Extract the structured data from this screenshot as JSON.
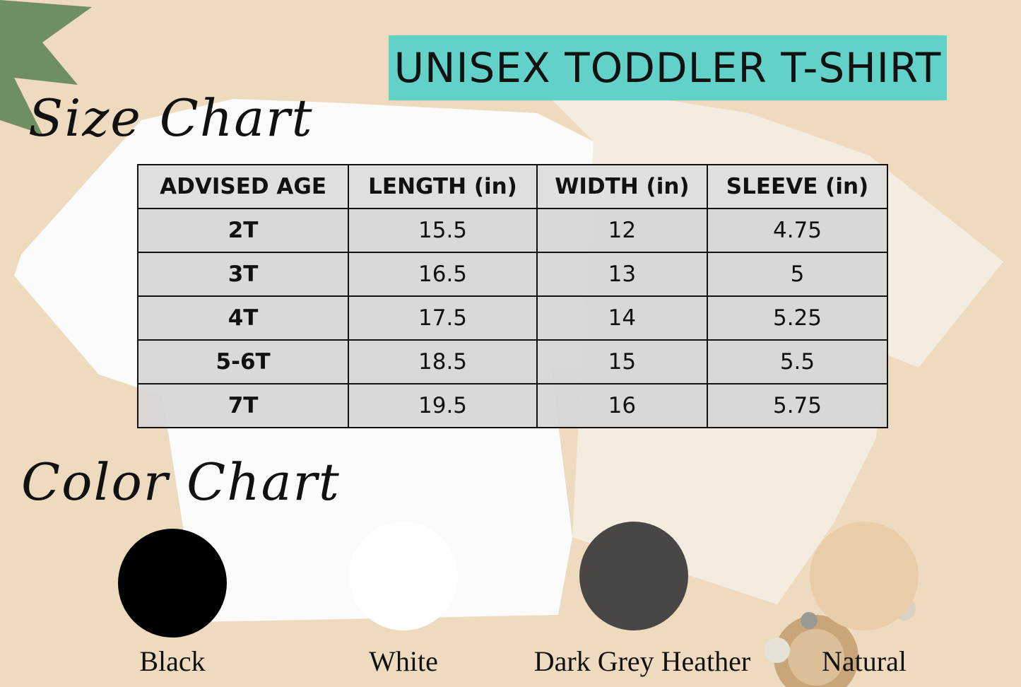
{
  "title": "UNISEX TODDLER T-SHIRT",
  "size_chart_heading": "Size Chart",
  "color_chart_heading": "Color Chart",
  "table": {
    "headers": [
      "ADVISED AGE",
      "LENGTH (in)",
      "WIDTH (in)",
      "SLEEVE (in)"
    ],
    "rows": [
      [
        "2T",
        "15.5",
        "12",
        "4.75"
      ],
      [
        "3T",
        "16.5",
        "13",
        "5"
      ],
      [
        "4T",
        "17.5",
        "14",
        "5.25"
      ],
      [
        "5-6T",
        "18.5",
        "15",
        "5.5"
      ],
      [
        "7T",
        "19.5",
        "16",
        "5.75"
      ]
    ]
  },
  "colors": [
    {
      "name": "Black",
      "hex": "#000000"
    },
    {
      "name": "White",
      "hex": "#ffffff"
    },
    {
      "name": "Dark Grey Heather",
      "hex": "#4a4646"
    },
    {
      "name": "Natural",
      "hex": "#e9cca8"
    }
  ],
  "banner_color": "#62d2c8"
}
